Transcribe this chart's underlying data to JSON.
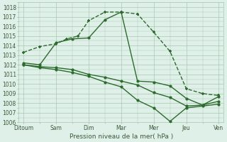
{
  "x_labels": [
    "Ditoum",
    "Sam",
    "Dim",
    "Mar",
    "Mer",
    "Jeu",
    "Ven"
  ],
  "x_positions": [
    0,
    1,
    2,
    3,
    4,
    5,
    6
  ],
  "series": [
    {
      "x": [
        0,
        0.5,
        1,
        1.33,
        1.67,
        2,
        2.5,
        3,
        3.5,
        4,
        4.5,
        5,
        5.5,
        6
      ],
      "y": [
        1013.3,
        1013.9,
        1014.2,
        1014.7,
        1015.0,
        1016.6,
        1017.5,
        1017.5,
        1017.3,
        1015.4,
        1013.4,
        1009.5,
        1009.0,
        1008.8
      ],
      "linestyle": "--",
      "marker": "+",
      "markersize": 3.5,
      "linewidth": 1.0
    },
    {
      "x": [
        0,
        0.5,
        1,
        1.5,
        2,
        2.5,
        3,
        3.5,
        4,
        4.5,
        5,
        5.5,
        6
      ],
      "y": [
        1012.2,
        1012.0,
        1014.3,
        1014.7,
        1014.8,
        1016.7,
        1017.5,
        1010.3,
        1010.2,
        1009.8,
        1008.5,
        1007.8,
        1008.7
      ],
      "linestyle": "-",
      "marker": "o",
      "markersize": 2.2,
      "linewidth": 1.0
    },
    {
      "x": [
        0,
        0.5,
        1,
        1.5,
        2,
        2.5,
        3,
        3.5,
        4,
        4.5,
        5,
        5.5,
        6
      ],
      "y": [
        1012.0,
        1011.8,
        1011.7,
        1011.5,
        1011.0,
        1010.7,
        1010.3,
        1009.9,
        1009.1,
        1008.6,
        1007.7,
        1007.8,
        1008.2
      ],
      "linestyle": "-",
      "marker": "o",
      "markersize": 2.2,
      "linewidth": 1.0
    },
    {
      "x": [
        0,
        0.5,
        1,
        1.5,
        2,
        2.5,
        3,
        3.5,
        4,
        4.5,
        5,
        5.5,
        6
      ],
      "y": [
        1012.0,
        1011.7,
        1011.5,
        1011.2,
        1010.8,
        1010.2,
        1009.7,
        1008.3,
        1007.5,
        1006.1,
        1007.5,
        1007.7,
        1007.9
      ],
      "linestyle": "-",
      "marker": "o",
      "markersize": 2.2,
      "linewidth": 1.0
    }
  ],
  "ylim": [
    1006,
    1018.5
  ],
  "yticks": [
    1006,
    1007,
    1008,
    1009,
    1010,
    1011,
    1012,
    1013,
    1014,
    1015,
    1016,
    1017,
    1018
  ],
  "xlabel": "Pression niveau de la mer( hPa )",
  "bg_color": "#dff0e8",
  "grid_color": "#a8c8b0",
  "line_color": "#2d6a2d",
  "text_color": "#3a5a3a"
}
